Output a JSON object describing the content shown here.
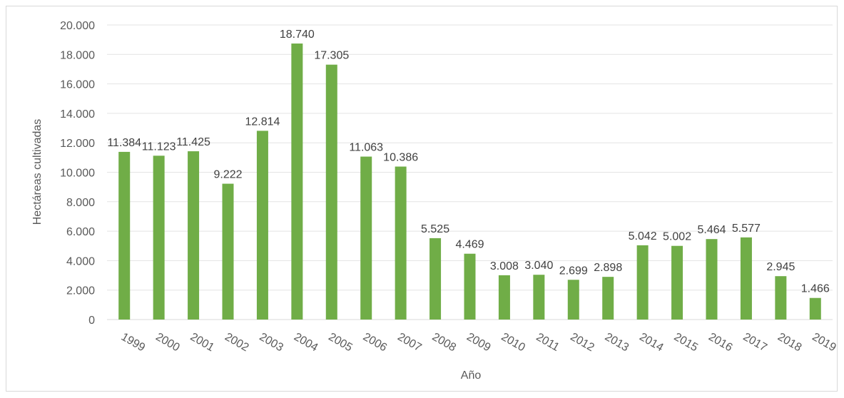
{
  "chart_data": {
    "type": "bar",
    "title": "",
    "xlabel": "Año",
    "ylabel": "Hectáreas cultivadas",
    "ylim": [
      0,
      20000
    ],
    "y_ticks": [
      0,
      2000,
      4000,
      6000,
      8000,
      10000,
      12000,
      14000,
      16000,
      18000,
      20000
    ],
    "y_tick_labels": [
      "0",
      "2.000",
      "4.000",
      "6.000",
      "8.000",
      "10.000",
      "12.000",
      "14.000",
      "16.000",
      "18.000",
      "20.000"
    ],
    "grid": true,
    "legend": "none",
    "bar_color": "#70ad47",
    "categories": [
      "1999",
      "2000",
      "2001",
      "2002",
      "2003",
      "2004",
      "2005",
      "2006",
      "2007",
      "2008",
      "2009",
      "2010",
      "2011",
      "2012",
      "2013",
      "2014",
      "2015",
      "2016",
      "2017",
      "2018",
      "2019"
    ],
    "values": [
      11384,
      11123,
      11425,
      9222,
      12814,
      18740,
      17305,
      11063,
      10386,
      5525,
      4469,
      3008,
      3040,
      2699,
      2898,
      5042,
      5002,
      5464,
      5577,
      2945,
      1466
    ],
    "data_labels": [
      "11.384",
      "11.123",
      "11.425",
      "9.222",
      "12.814",
      "18.740",
      "17.305",
      "11.063",
      "10.386",
      "5.525",
      "4.469",
      "3.008",
      "3.040",
      "2.699",
      "2.898",
      "5.042",
      "5.002",
      "5.464",
      "5.577",
      "2.945",
      "1.466"
    ]
  }
}
